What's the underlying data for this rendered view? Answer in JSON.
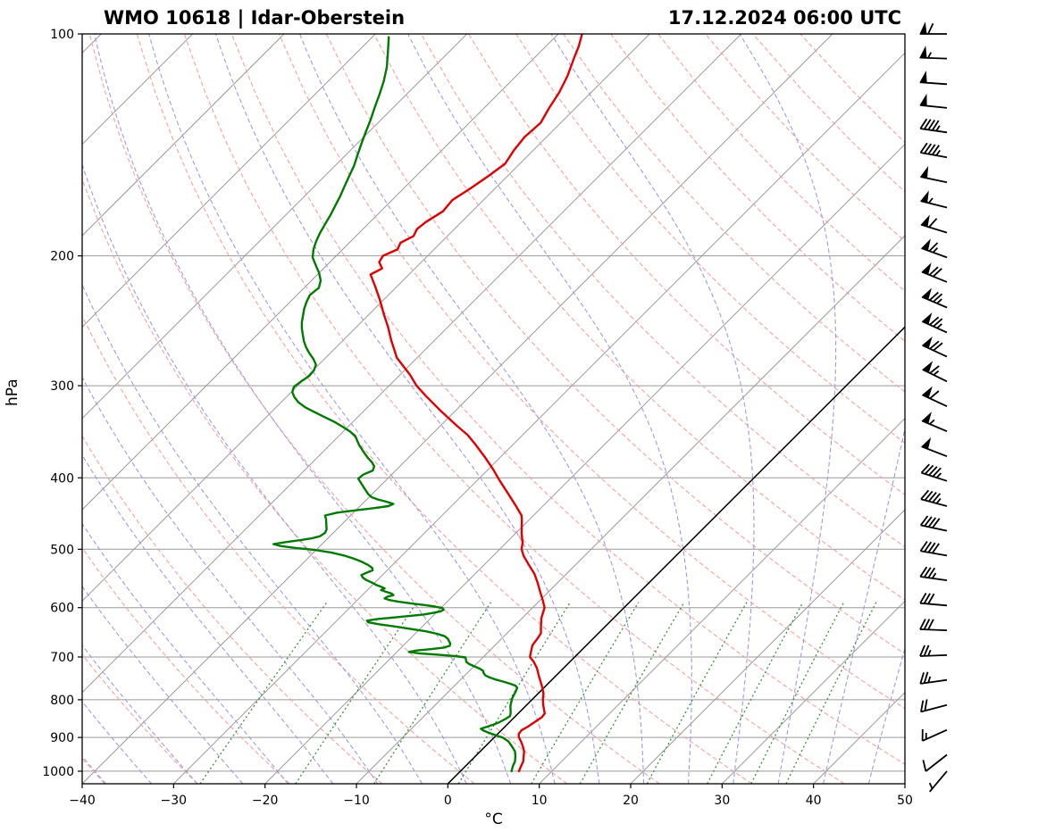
{
  "header": {
    "station_title": "WMO 10618 | Idar-Oberstein",
    "datetime_title": "17.12.2024 06:00 UTC"
  },
  "axes": {
    "ylabel": "hPa",
    "xlabel": "°C",
    "x_tick_values": [
      -40,
      -30,
      -20,
      -10,
      0,
      10,
      20,
      30,
      40,
      50
    ],
    "x_tick_labels": [
      "−40",
      "−30",
      "−20",
      "−10",
      "0",
      "10",
      "20",
      "30",
      "40",
      "50"
    ],
    "y_tick_values": [
      100,
      200,
      300,
      400,
      500,
      600,
      700,
      800,
      900,
      1000
    ],
    "xlim": [
      -40,
      50
    ],
    "plim": [
      100,
      1040
    ],
    "skew_degrees": 45
  },
  "style": {
    "temperature_color": "#e00000",
    "dewpoint_color": "#007a00",
    "dry_adiabat_color": "#f2a2a2",
    "moist_adiabat_color": "#9d9de0",
    "mixing_ratio_color": "#3d8f3d",
    "isotherm_color": "#9a9a9a",
    "grid_color": "#9a9a9a",
    "zero_isotherm_color": "#000000",
    "barb_color": "#000000"
  },
  "chart_data": {
    "type": "skewt-logp",
    "title": "WMO 10618 | Idar-Oberstein",
    "subtitle": "17.12.2024 06:00 UTC",
    "pressure_unit": "hPa",
    "temperature_unit": "°C",
    "temperature_profile": [
      [
        1000,
        6.4
      ],
      [
        985,
        6.1
      ],
      [
        970,
        5.8
      ],
      [
        955,
        5.3
      ],
      [
        940,
        4.8
      ],
      [
        925,
        4.1
      ],
      [
        910,
        3.3
      ],
      [
        900,
        2.7
      ],
      [
        890,
        2.3
      ],
      [
        880,
        2.2
      ],
      [
        870,
        2.5
      ],
      [
        855,
        2.8
      ],
      [
        845,
        3.0
      ],
      [
        835,
        2.9
      ],
      [
        825,
        2.4
      ],
      [
        815,
        1.9
      ],
      [
        800,
        1.2
      ],
      [
        785,
        0.6
      ],
      [
        770,
        -0.2
      ],
      [
        755,
        -1.1
      ],
      [
        740,
        -2.0
      ],
      [
        725,
        -2.9
      ],
      [
        710,
        -4.0
      ],
      [
        700,
        -4.9
      ],
      [
        690,
        -5.3
      ],
      [
        675,
        -5.9
      ],
      [
        660,
        -6.1
      ],
      [
        650,
        -6.3
      ],
      [
        635,
        -7.1
      ],
      [
        620,
        -7.9
      ],
      [
        610,
        -8.3
      ],
      [
        600,
        -8.7
      ],
      [
        585,
        -9.8
      ],
      [
        570,
        -11.0
      ],
      [
        555,
        -12.2
      ],
      [
        540,
        -13.5
      ],
      [
        525,
        -15.1
      ],
      [
        510,
        -16.7
      ],
      [
        500,
        -17.6
      ],
      [
        490,
        -18.2
      ],
      [
        475,
        -19.4
      ],
      [
        460,
        -20.5
      ],
      [
        450,
        -21.3
      ],
      [
        435,
        -23.2
      ],
      [
        420,
        -25.2
      ],
      [
        405,
        -27.3
      ],
      [
        400,
        -28.0
      ],
      [
        390,
        -29.4
      ],
      [
        375,
        -31.7
      ],
      [
        360,
        -34.2
      ],
      [
        350,
        -36.0
      ],
      [
        340,
        -38.2
      ],
      [
        325,
        -41.5
      ],
      [
        310,
        -44.8
      ],
      [
        300,
        -47.0
      ],
      [
        290,
        -48.9
      ],
      [
        275,
        -52.2
      ],
      [
        260,
        -54.8
      ],
      [
        250,
        -56.5
      ],
      [
        240,
        -58.4
      ],
      [
        230,
        -60.3
      ],
      [
        220,
        -62.4
      ],
      [
        212,
        -64.2
      ],
      [
        208,
        -63.6
      ],
      [
        204,
        -64.6
      ],
      [
        200,
        -64.9
      ],
      [
        196,
        -64.0
      ],
      [
        192,
        -64.4
      ],
      [
        188,
        -63.7
      ],
      [
        184,
        -64.1
      ],
      [
        180,
        -63.9
      ],
      [
        174,
        -63.2
      ],
      [
        168,
        -63.4
      ],
      [
        162,
        -62.7
      ],
      [
        156,
        -62.1
      ],
      [
        150,
        -61.6
      ],
      [
        144,
        -62.1
      ],
      [
        138,
        -62.4
      ],
      [
        132,
        -62.2
      ],
      [
        126,
        -62.9
      ],
      [
        120,
        -63.5
      ],
      [
        114,
        -64.4
      ],
      [
        108,
        -65.6
      ],
      [
        104,
        -66.4
      ],
      [
        100,
        -67.4
      ]
    ],
    "dewpoint_profile": [
      [
        1000,
        5.6
      ],
      [
        985,
        5.2
      ],
      [
        970,
        4.9
      ],
      [
        955,
        4.4
      ],
      [
        940,
        3.8
      ],
      [
        925,
        2.9
      ],
      [
        910,
        1.9
      ],
      [
        900,
        0.9
      ],
      [
        893,
        -0.2
      ],
      [
        887,
        -1.1
      ],
      [
        881,
        -1.9
      ],
      [
        876,
        -2.4
      ],
      [
        871,
        -2.0
      ],
      [
        865,
        -1.5
      ],
      [
        858,
        -1.1
      ],
      [
        850,
        -0.8
      ],
      [
        842,
        -0.6
      ],
      [
        833,
        -0.9
      ],
      [
        824,
        -1.3
      ],
      [
        815,
        -1.7
      ],
      [
        806,
        -2.0
      ],
      [
        797,
        -2.3
      ],
      [
        788,
        -2.5
      ],
      [
        779,
        -2.7
      ],
      [
        771,
        -2.9
      ],
      [
        766,
        -3.3
      ],
      [
        761,
        -4.1
      ],
      [
        756,
        -5.1
      ],
      [
        751,
        -6.2
      ],
      [
        746,
        -7.1
      ],
      [
        741,
        -7.8
      ],
      [
        736,
        -8.2
      ],
      [
        731,
        -8.5
      ],
      [
        726,
        -9.1
      ],
      [
        721,
        -9.9
      ],
      [
        716,
        -10.7
      ],
      [
        711,
        -11.3
      ],
      [
        706,
        -11.6
      ],
      [
        701,
        -11.9
      ],
      [
        698,
        -13.2
      ],
      [
        695,
        -15.2
      ],
      [
        692,
        -17.4
      ],
      [
        689,
        -18.7
      ],
      [
        686,
        -18.0
      ],
      [
        683,
        -16.6
      ],
      [
        680,
        -15.4
      ],
      [
        676,
        -14.9
      ],
      [
        671,
        -15.1
      ],
      [
        666,
        -15.5
      ],
      [
        661,
        -15.9
      ],
      [
        656,
        -16.5
      ],
      [
        651,
        -17.6
      ],
      [
        646,
        -19.1
      ],
      [
        641,
        -21.1
      ],
      [
        636,
        -23.2
      ],
      [
        632,
        -25.0
      ],
      [
        628,
        -26.4
      ],
      [
        625,
        -26.7
      ],
      [
        622,
        -25.8
      ],
      [
        619,
        -24.3
      ],
      [
        616,
        -22.6
      ],
      [
        613,
        -21.2
      ],
      [
        610,
        -20.3
      ],
      [
        607,
        -19.7
      ],
      [
        604,
        -19.5
      ],
      [
        601,
        -19.8
      ],
      [
        598,
        -20.8
      ],
      [
        595,
        -22.2
      ],
      [
        592,
        -23.8
      ],
      [
        589,
        -25.3
      ],
      [
        586,
        -26.5
      ],
      [
        583,
        -27.2
      ],
      [
        580,
        -27.1
      ],
      [
        577,
        -26.6
      ],
      [
        574,
        -27.0
      ],
      [
        571,
        -27.8
      ],
      [
        568,
        -28.5
      ],
      [
        565,
        -28.3
      ],
      [
        562,
        -28.9
      ],
      [
        559,
        -29.6
      ],
      [
        556,
        -30.1
      ],
      [
        553,
        -30.7
      ],
      [
        550,
        -31.3
      ],
      [
        546,
        -31.9
      ],
      [
        542,
        -32.3
      ],
      [
        538,
        -32.0
      ],
      [
        534,
        -31.6
      ],
      [
        530,
        -31.9
      ],
      [
        525,
        -32.7
      ],
      [
        520,
        -33.7
      ],
      [
        515,
        -34.9
      ],
      [
        510,
        -36.3
      ],
      [
        505,
        -38.1
      ],
      [
        501,
        -40.2
      ],
      [
        498,
        -42.4
      ],
      [
        495,
        -44.3
      ],
      [
        492,
        -45.3
      ],
      [
        489,
        -44.2
      ],
      [
        486,
        -42.8
      ],
      [
        483,
        -41.7
      ],
      [
        480,
        -41.1
      ],
      [
        475,
        -40.9
      ],
      [
        470,
        -41.1
      ],
      [
        465,
        -41.5
      ],
      [
        460,
        -41.9
      ],
      [
        455,
        -42.3
      ],
      [
        450,
        -42.8
      ],
      [
        446,
        -41.8
      ],
      [
        443,
        -40.2
      ],
      [
        440,
        -38.4
      ],
      [
        437,
        -36.9
      ],
      [
        434,
        -36.6
      ],
      [
        431,
        -37.6
      ],
      [
        428,
        -38.8
      ],
      [
        425,
        -39.7
      ],
      [
        421,
        -40.4
      ],
      [
        416,
        -41.1
      ],
      [
        411,
        -41.8
      ],
      [
        406,
        -42.5
      ],
      [
        401,
        -43.2
      ],
      [
        396,
        -43.1
      ],
      [
        391,
        -42.5
      ],
      [
        386,
        -42.8
      ],
      [
        381,
        -43.5
      ],
      [
        376,
        -44.4
      ],
      [
        371,
        -45.2
      ],
      [
        366,
        -46.0
      ],
      [
        361,
        -46.8
      ],
      [
        356,
        -47.5
      ],
      [
        351,
        -48.2
      ],
      [
        346,
        -49.3
      ],
      [
        341,
        -50.6
      ],
      [
        336,
        -52.0
      ],
      [
        331,
        -53.6
      ],
      [
        326,
        -55.2
      ],
      [
        321,
        -56.8
      ],
      [
        316,
        -58.1
      ],
      [
        311,
        -59.1
      ],
      [
        306,
        -59.9
      ],
      [
        301,
        -60.3
      ],
      [
        296,
        -60.1
      ],
      [
        291,
        -59.8
      ],
      [
        286,
        -59.9
      ],
      [
        281,
        -60.3
      ],
      [
        276,
        -61.2
      ],
      [
        271,
        -62.3
      ],
      [
        266,
        -63.3
      ],
      [
        261,
        -64.2
      ],
      [
        256,
        -65.0
      ],
      [
        251,
        -65.8
      ],
      [
        246,
        -66.5
      ],
      [
        241,
        -67.1
      ],
      [
        236,
        -67.7
      ],
      [
        231,
        -68.2
      ],
      [
        226,
        -68.6
      ],
      [
        221,
        -68.4
      ],
      [
        216,
        -69.0
      ],
      [
        211,
        -70.0
      ],
      [
        206,
        -71.2
      ],
      [
        201,
        -72.4
      ],
      [
        196,
        -73.2
      ],
      [
        191,
        -73.8
      ],
      [
        186,
        -74.3
      ],
      [
        181,
        -74.7
      ],
      [
        176,
        -75.1
      ],
      [
        171,
        -75.6
      ],
      [
        166,
        -76.1
      ],
      [
        161,
        -76.7
      ],
      [
        156,
        -77.3
      ],
      [
        151,
        -77.9
      ],
      [
        146,
        -78.7
      ],
      [
        141,
        -79.5
      ],
      [
        136,
        -80.3
      ],
      [
        131,
        -81.1
      ],
      [
        126,
        -82.0
      ],
      [
        121,
        -82.9
      ],
      [
        116,
        -83.9
      ],
      [
        111,
        -85.1
      ],
      [
        106,
        -86.6
      ],
      [
        101,
        -88.2
      ]
    ],
    "wind_barbs_kt": [
      [
        100,
        270,
        60
      ],
      [
        108,
        272,
        55
      ],
      [
        117,
        274,
        50
      ],
      [
        126,
        276,
        50
      ],
      [
        136,
        278,
        45
      ],
      [
        147,
        280,
        45
      ],
      [
        159,
        282,
        50
      ],
      [
        172,
        284,
        55
      ],
      [
        186,
        287,
        60
      ],
      [
        201,
        290,
        65
      ],
      [
        217,
        292,
        70
      ],
      [
        235,
        293,
        75
      ],
      [
        254,
        294,
        75
      ],
      [
        274,
        295,
        70
      ],
      [
        296,
        296,
        65
      ],
      [
        320,
        295,
        60
      ],
      [
        346,
        293,
        55
      ],
      [
        374,
        291,
        50
      ],
      [
        404,
        288,
        45
      ],
      [
        437,
        285,
        45
      ],
      [
        472,
        282,
        40
      ],
      [
        510,
        280,
        40
      ],
      [
        551,
        278,
        35
      ],
      [
        596,
        275,
        30
      ],
      [
        644,
        272,
        30
      ],
      [
        696,
        268,
        25
      ],
      [
        752,
        262,
        25
      ],
      [
        813,
        255,
        20
      ],
      [
        879,
        246,
        15
      ],
      [
        950,
        232,
        10
      ],
      [
        1000,
        220,
        5
      ]
    ],
    "background": {
      "isotherm_step_C": 10,
      "isotherm_range_C": [
        -160,
        50
      ],
      "dry_adiabats_theta_K": {
        "start": 233,
        "end": 443,
        "step": 10
      },
      "moist_adiabats_start_C": {
        "start": -40,
        "end": 45,
        "step": 5
      },
      "mixing_ratio_g_per_kg": [
        0.4,
        1,
        2,
        4,
        7,
        10,
        16,
        24,
        32,
        40
      ],
      "mixing_ratio_top_hPa": 590
    }
  }
}
